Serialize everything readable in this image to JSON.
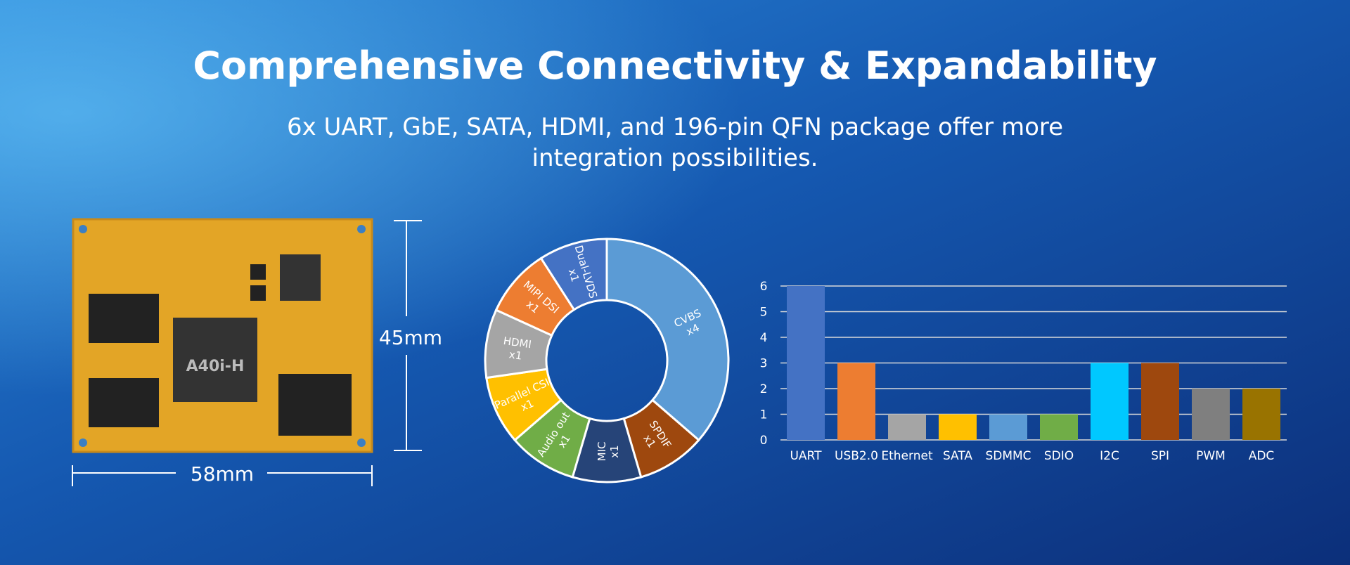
{
  "header": {
    "title": "Comprehensive Connectivity & Expandability",
    "subtitle": [
      "6x UART, GbE, SATA, HDMI, and 196-pin QFN package offer more",
      "integration possibilities."
    ]
  },
  "board": {
    "height_label": "45mm",
    "width_label": "58mm"
  },
  "chart_data": [
    {
      "type": "donut",
      "categories": [
        "CVBS",
        "SPDIF",
        "MIC",
        "Audio out",
        "Parallel CSI",
        "HDMI",
        "MIPI DSI",
        "Dual-LVDS"
      ],
      "values": [
        4,
        1,
        1,
        1,
        1,
        1,
        1,
        1
      ],
      "value_labels": [
        "x4",
        "x1",
        "x1",
        "x1",
        "x1",
        "x1",
        "x1",
        "x1"
      ],
      "colors": [
        "#5b9bd5",
        "#9e480e",
        "#264478",
        "#70ad47",
        "#ffc000",
        "#a5a5a5",
        "#ed7d31",
        "#4472c4"
      ]
    },
    {
      "type": "bar",
      "categories": [
        "UART",
        "USB2.0",
        "Ethernet",
        "SATA",
        "SDMMC",
        "SDIO",
        "I2C",
        "SPI",
        "PWM",
        "ADC"
      ],
      "values": [
        6,
        3,
        1,
        1,
        1,
        1,
        3,
        3,
        2,
        2
      ],
      "colors": [
        "#4472c4",
        "#ed7d31",
        "#a5a5a5",
        "#ffc000",
        "#5b9bd5",
        "#70ad47",
        "#00c8ff",
        "#9e480e",
        "#7f7f7f",
        "#997300"
      ],
      "ylim": [
        0,
        6
      ],
      "yticks": [
        0,
        1,
        2,
        3,
        4,
        5,
        6
      ],
      "grid": true
    }
  ]
}
